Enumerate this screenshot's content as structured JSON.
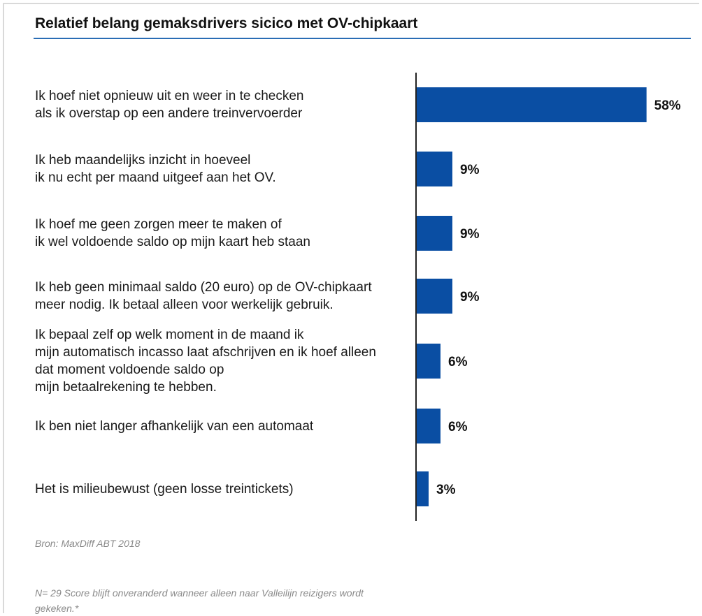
{
  "chart_data": {
    "type": "bar",
    "orientation": "horizontal",
    "title": "Relatief belang gemaksdrivers sicico met OV-chipkaart",
    "categories": [
      "Ik hoef niet opnieuw uit en weer in te checken\n als ik overstap op een andere treinvervoerder",
      "Ik heb maandelijks inzicht in hoeveel\nik nu echt per maand uitgeef aan het OV.",
      "Ik hoef me geen zorgen meer te maken of\nik wel voldoende saldo op mijn kaart heb staan",
      "Ik heb geen minimaal saldo (20 euro) op de OV-chipkaart\nmeer nodig. Ik betaal alleen voor werkelijk gebruik.",
      "Ik bepaal zelf op welk moment in de maand ik\nmijn automatisch incasso laat afschrijven en ik hoef alleen\ndat moment voldoende saldo op\nmijn betaalrekening te hebben.",
      "Ik ben niet langer afhankelijk van een automaat",
      "Het is milieubewust (geen losse treintickets)"
    ],
    "values": [
      58,
      9,
      9,
      9,
      6,
      6,
      3
    ],
    "value_labels": [
      "58%",
      "9%",
      "9%",
      "9%",
      "6%",
      "6%",
      "3%"
    ],
    "xlim": [
      0,
      60
    ],
    "bar_color": "#0a4ea3",
    "grid": false
  },
  "footer": {
    "source": "Bron: MaxDiff ABT 2018",
    "note": "N= 29 Score blijft onveranderd wanneer alleen naar Valleilijn reizigers wordt gekeken.*"
  }
}
